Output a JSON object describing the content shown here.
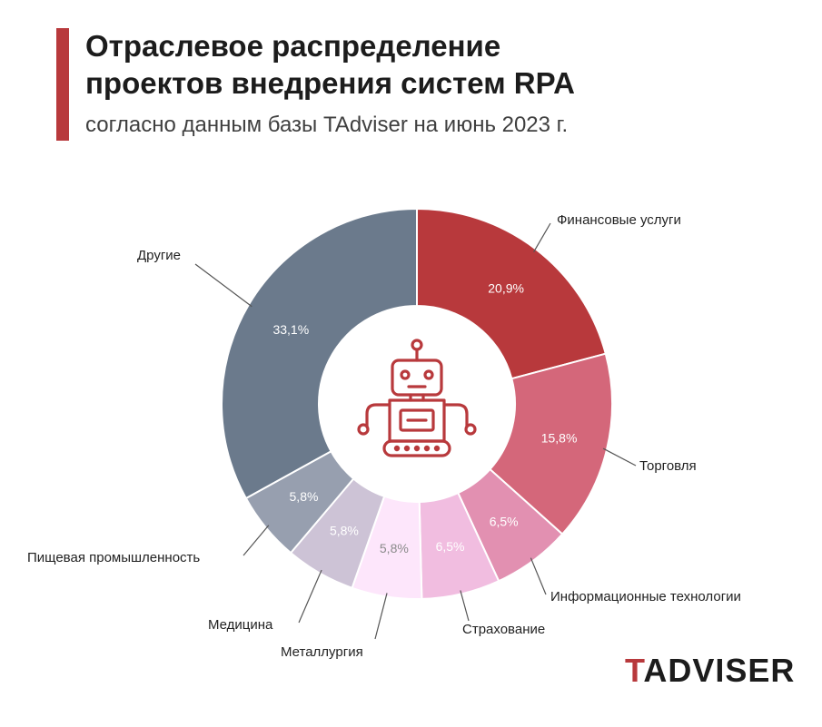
{
  "header": {
    "title_line1": "Отраслевое распределение",
    "title_line2": "проектов внедрения систем RPA",
    "subtitle": "согласно данным базы TAdviser на июнь 2023 г.",
    "accent_color": "#b8393c"
  },
  "center_icon": "robot-icon",
  "brand": {
    "first": "T",
    "rest": "ADVISER"
  },
  "chart_data": {
    "type": "pie",
    "variant": "donut",
    "title": "Отраслевое распределение проектов внедрения систем RPA",
    "subtitle": "согласно данным базы TAdviser на июнь 2023 г.",
    "value_unit": "%",
    "slices": [
      {
        "label": "Финансовые услуги",
        "value": 20.9,
        "display": "20,9%",
        "color": "#b8393c",
        "label_color": "#ffffff"
      },
      {
        "label": "Торговля",
        "value": 15.8,
        "display": "15,8%",
        "color": "#d4677a",
        "label_color": "#ffffff"
      },
      {
        "label": "Информационные технологии",
        "value": 6.5,
        "display": "6,5%",
        "color": "#e290b1",
        "label_color": "#ffffff"
      },
      {
        "label": "Страхование",
        "value": 6.5,
        "display": "6,5%",
        "color": "#f1bde0",
        "label_color": "#ffffff"
      },
      {
        "label": "Металлургия",
        "value": 5.8,
        "display": "5,8%",
        "color": "#fde6fb",
        "label_color": "#8a8a8a"
      },
      {
        "label": "Медицина",
        "value": 5.8,
        "display": "5,8%",
        "color": "#cdc3d6",
        "label_color": "#ffffff"
      },
      {
        "label": "Пищевая промышленность",
        "value": 5.8,
        "display": "5,8%",
        "color": "#979faf",
        "label_color": "#ffffff"
      },
      {
        "label": "Другие",
        "value": 33.1,
        "display": "33,1%",
        "color": "#6b7a8c",
        "label_color": "#ffffff"
      }
    ]
  }
}
